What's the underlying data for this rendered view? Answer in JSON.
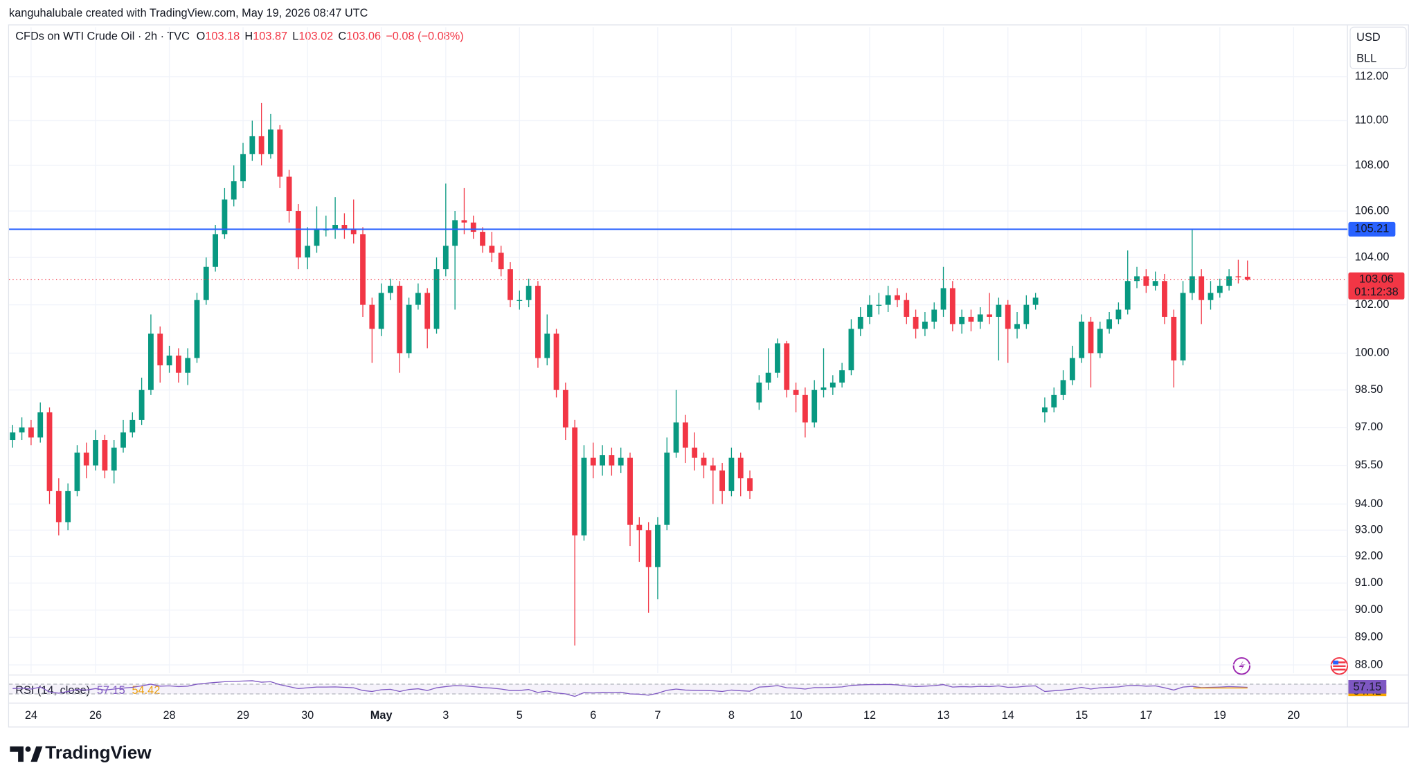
{
  "chart_data": {
    "type": "candlestick",
    "credit": "kanguhalubale created with TradingView.com, May 19, 2026 08:47 UTC",
    "title": "CFDs on WTI Crude Oil · 2h · TVC",
    "legend_labels": {
      "open": "O",
      "high": "H",
      "low": "L",
      "close": "C"
    },
    "change": "−0.08",
    "change_pct": "(−0.08%)",
    "currency": "USD",
    "unit": "BLL",
    "brand": "TradingView",
    "countdown": "01:12:38",
    "up_color": "#089981",
    "down_color": "#f23645",
    "log_scale": true,
    "grid": true,
    "ylim": [
      87.7,
      114.3
    ],
    "yticks": [
      {
        "value": 88,
        "label": "88.00"
      },
      {
        "value": 89,
        "label": "89.00"
      },
      {
        "value": 90,
        "label": "90.00"
      },
      {
        "value": 91,
        "label": "91.00"
      },
      {
        "value": 92,
        "label": "92.00"
      },
      {
        "value": 93,
        "label": "93.00"
      },
      {
        "value": 94,
        "label": "94.00"
      },
      {
        "value": 95.5,
        "label": "95.50"
      },
      {
        "value": 97,
        "label": "97.00"
      },
      {
        "value": 98.5,
        "label": "98.50"
      },
      {
        "value": 100,
        "label": "100.00"
      },
      {
        "value": 102,
        "label": "102.00"
      },
      {
        "value": 104,
        "label": "104.00"
      },
      {
        "value": 106,
        "label": "106.00"
      },
      {
        "value": 108,
        "label": "108.00"
      },
      {
        "value": 110,
        "label": "110.00"
      },
      {
        "value": 112,
        "label": "112.00"
      }
    ],
    "hline": {
      "value": 105.21,
      "color": "#2962ff"
    },
    "categories": [
      null,
      null,
      "24",
      null,
      null,
      null,
      null,
      null,
      null,
      "26",
      null,
      null,
      null,
      null,
      null,
      null,
      null,
      "28",
      null,
      null,
      null,
      null,
      null,
      null,
      null,
      "29",
      null,
      null,
      null,
      null,
      null,
      null,
      "30",
      null,
      null,
      null,
      null,
      null,
      null,
      null,
      "May",
      null,
      null,
      null,
      null,
      null,
      null,
      "3",
      null,
      null,
      null,
      null,
      null,
      null,
      null,
      "5",
      null,
      null,
      null,
      null,
      null,
      null,
      null,
      "6",
      null,
      null,
      null,
      null,
      null,
      null,
      "7",
      null,
      null,
      null,
      null,
      null,
      null,
      null,
      "8",
      null,
      null,
      null,
      null,
      null,
      null,
      "10",
      null,
      null,
      null,
      null,
      null,
      null,
      null,
      "12",
      null,
      null,
      null,
      null,
      null,
      null,
      null,
      "13",
      null,
      null,
      null,
      null,
      null,
      null,
      "14",
      null,
      null,
      null,
      null,
      null,
      null,
      null,
      "15",
      null,
      null,
      null,
      null,
      null,
      null,
      "17",
      null,
      null,
      null,
      null,
      null,
      null,
      null,
      "19",
      null,
      null,
      null,
      null,
      null,
      null,
      null,
      "20",
      null,
      null
    ],
    "open": [
      96.5,
      96.8,
      97.0,
      96.6,
      97.6,
      94.5,
      93.3,
      94.5,
      96.0,
      95.5,
      96.5,
      95.3,
      96.2,
      96.8,
      97.3,
      98.5,
      100.8,
      99.5,
      99.9,
      99.2,
      99.8,
      102.2,
      103.6,
      105.0,
      106.5,
      107.3,
      108.5,
      109.3,
      108.5,
      109.6,
      107.5,
      106.0,
      104.0,
      104.5,
      105.2,
      105.2,
      105.4,
      105.2,
      105.0,
      102.0,
      101.0,
      102.5,
      102.8,
      100.0,
      102.0,
      102.5,
      101.0,
      103.5,
      104.5,
      105.6,
      105.5,
      105.1,
      104.5,
      104.2,
      103.5,
      102.2,
      102.2,
      102.8,
      99.8,
      100.8,
      98.5,
      97.0,
      92.8,
      95.8,
      95.5,
      95.9,
      95.5,
      95.8,
      93.2,
      93.0,
      91.6,
      93.2,
      96.0,
      97.2,
      96.2,
      95.8,
      95.5,
      95.3,
      94.5,
      95.8,
      95.0,
      98.0,
      98.8,
      99.2,
      100.4,
      98.5,
      98.3,
      97.2,
      98.5,
      98.6,
      98.8,
      99.3,
      101.0,
      101.5,
      102.0,
      102.0,
      102.4,
      102.2,
      101.5,
      101.0,
      101.3,
      101.8,
      102.7,
      101.2,
      101.5,
      101.3,
      101.6,
      101.5,
      102.0,
      101.0,
      101.2,
      102.0,
      97.6,
      97.8,
      98.3,
      98.9,
      99.8,
      101.3,
      100.0,
      101.0,
      101.4,
      101.8,
      103.0,
      103.2,
      102.8,
      103.0,
      101.5,
      99.7,
      102.5,
      103.2,
      102.2,
      102.5,
      102.8,
      103.2,
      103.18,
      null,
      null,
      null,
      null,
      null,
      null,
      null
    ],
    "high": [
      97.1,
      97.4,
      97.3,
      98.0,
      97.8,
      95.0,
      94.8,
      96.3,
      96.4,
      96.9,
      96.7,
      96.5,
      97.3,
      97.6,
      99.0,
      101.6,
      101.1,
      100.3,
      100.2,
      100.2,
      102.5,
      104.0,
      105.4,
      107.0,
      108.0,
      109.0,
      110.0,
      110.8,
      110.3,
      109.8,
      107.8,
      106.3,
      105.3,
      106.2,
      105.8,
      106.6,
      105.9,
      106.5,
      105.3,
      102.3,
      102.9,
      103.1,
      103.0,
      102.3,
      102.9,
      102.7,
      104.0,
      107.2,
      106.0,
      107.0,
      105.8,
      105.3,
      105.1,
      104.5,
      103.8,
      102.6,
      103.1,
      103.0,
      101.6,
      101.0,
      98.8,
      97.3,
      96.3,
      96.4,
      96.3,
      96.2,
      96.2,
      96.0,
      93.5,
      93.3,
      93.5,
      96.6,
      98.5,
      97.5,
      96.8,
      96.0,
      95.8,
      95.6,
      96.2,
      96.0,
      95.3,
      99.1,
      100.2,
      100.6,
      100.5,
      98.8,
      98.6,
      98.9,
      100.2,
      99.1,
      99.6,
      101.4,
      101.9,
      102.4,
      102.5,
      102.8,
      102.7,
      102.5,
      101.8,
      101.7,
      102.1,
      103.6,
      103.0,
      101.8,
      101.8,
      101.9,
      102.5,
      102.3,
      102.2,
      101.7,
      102.4,
      102.5,
      98.2,
      98.6,
      99.3,
      100.3,
      101.6,
      101.5,
      101.3,
      101.7,
      102.1,
      104.3,
      103.6,
      103.5,
      103.4,
      103.3,
      101.8,
      103.0,
      105.2,
      103.5,
      103.0,
      103.1,
      103.5,
      103.9,
      103.87,
      null,
      null,
      null,
      null,
      null,
      null,
      null
    ],
    "low": [
      96.2,
      96.5,
      96.3,
      96.4,
      94.0,
      92.8,
      93.0,
      94.3,
      95.0,
      95.3,
      95.0,
      94.8,
      96.0,
      96.6,
      97.1,
      98.3,
      98.8,
      99.2,
      98.8,
      98.7,
      99.6,
      102.0,
      103.4,
      104.8,
      106.2,
      107.0,
      108.2,
      108.0,
      108.3,
      107.0,
      105.5,
      103.5,
      103.5,
      104.2,
      104.9,
      104.8,
      104.8,
      104.6,
      101.5,
      99.6,
      100.7,
      102.2,
      99.2,
      99.8,
      101.8,
      100.2,
      100.8,
      103.2,
      101.8,
      105.0,
      104.8,
      104.2,
      103.8,
      103.2,
      101.9,
      101.8,
      101.9,
      99.4,
      99.5,
      98.2,
      96.5,
      88.7,
      92.6,
      95.0,
      95.1,
      95.1,
      95.2,
      92.4,
      91.8,
      89.9,
      90.4,
      93.0,
      95.8,
      95.6,
      95.3,
      95.0,
      94.0,
      94.0,
      94.3,
      94.3,
      94.2,
      97.7,
      98.5,
      99.0,
      98.2,
      97.6,
      96.6,
      97.0,
      98.2,
      98.3,
      98.6,
      99.1,
      100.7,
      101.2,
      101.6,
      101.7,
      101.9,
      101.2,
      100.6,
      100.7,
      101.0,
      101.5,
      100.9,
      100.8,
      100.9,
      101.0,
      101.2,
      99.7,
      99.6,
      100.6,
      101.0,
      101.8,
      97.2,
      97.6,
      98.1,
      98.7,
      99.6,
      98.6,
      99.8,
      100.8,
      101.2,
      101.6,
      102.7,
      102.5,
      102.6,
      101.2,
      98.6,
      99.5,
      102.2,
      101.2,
      101.8,
      102.3,
      102.6,
      102.9,
      103.02,
      null,
      null,
      null,
      null,
      null,
      null,
      null
    ],
    "close": [
      96.8,
      97.0,
      96.6,
      97.6,
      94.5,
      93.3,
      94.5,
      96.0,
      95.5,
      96.5,
      95.3,
      96.2,
      96.8,
      97.3,
      98.5,
      100.8,
      99.5,
      99.9,
      99.2,
      99.8,
      102.2,
      103.6,
      105.0,
      106.5,
      107.3,
      108.5,
      109.3,
      108.5,
      109.6,
      107.5,
      106.0,
      104.0,
      104.5,
      105.2,
      105.2,
      105.4,
      105.2,
      105.0,
      102.0,
      101.0,
      102.5,
      102.8,
      100.0,
      102.0,
      102.5,
      101.0,
      103.5,
      104.5,
      105.6,
      105.5,
      105.1,
      104.5,
      104.2,
      103.5,
      102.2,
      102.2,
      102.8,
      99.8,
      100.8,
      98.5,
      97.0,
      92.8,
      95.8,
      95.5,
      95.9,
      95.5,
      95.8,
      93.2,
      93.0,
      91.6,
      93.2,
      96.0,
      97.2,
      96.2,
      95.8,
      95.5,
      95.3,
      94.5,
      95.8,
      95.0,
      94.5,
      98.8,
      99.2,
      100.4,
      98.5,
      98.3,
      97.2,
      98.5,
      98.6,
      98.8,
      99.3,
      101.0,
      101.5,
      102.0,
      102.0,
      102.4,
      102.2,
      101.5,
      101.0,
      101.3,
      101.8,
      102.7,
      101.2,
      101.5,
      101.3,
      101.6,
      101.5,
      102.0,
      101.0,
      101.2,
      102.0,
      102.3,
      97.8,
      98.3,
      98.9,
      99.8,
      101.3,
      100.0,
      101.0,
      101.4,
      101.8,
      103.0,
      103.2,
      102.8,
      103.0,
      101.5,
      99.7,
      102.5,
      103.2,
      102.2,
      102.5,
      102.8,
      103.2,
      103.18,
      103.06,
      null,
      null,
      null,
      null,
      null,
      null,
      null
    ],
    "rsi": {
      "title": "RSI (14, close)",
      "color": "#7e57c2",
      "ma_color": "#f7a600",
      "ma_value": 54.42,
      "ylim": [
        0,
        100
      ],
      "bands": [
        30,
        70
      ],
      "values": [
        52,
        54,
        50,
        58,
        38,
        33,
        40,
        48,
        46,
        52,
        46,
        50,
        54,
        57,
        63,
        70,
        62,
        63,
        60,
        62,
        70,
        74,
        77,
        80,
        81,
        83,
        84,
        78,
        80,
        68,
        60,
        52,
        55,
        58,
        58,
        59,
        57,
        55,
        44,
        40,
        47,
        49,
        40,
        48,
        51,
        44,
        55,
        60,
        64,
        63,
        60,
        56,
        54,
        50,
        44,
        44,
        48,
        36,
        42,
        34,
        30,
        20,
        35,
        34,
        36,
        35,
        37,
        30,
        29,
        25,
        33,
        45,
        50,
        46,
        45,
        44,
        43,
        40,
        46,
        43,
        41,
        58,
        60,
        64,
        55,
        54,
        50,
        56,
        56,
        57,
        59,
        65,
        67,
        68,
        68,
        69,
        67,
        63,
        60,
        62,
        64,
        68,
        58,
        60,
        59,
        61,
        60,
        63,
        57,
        58,
        62,
        63,
        40,
        43,
        46,
        50,
        57,
        50,
        55,
        57,
        59,
        64,
        65,
        62,
        63,
        55,
        46,
        58,
        61,
        56,
        57,
        58,
        60,
        59,
        57.15,
        null,
        null,
        null,
        null,
        null,
        null,
        null
      ]
    }
  }
}
